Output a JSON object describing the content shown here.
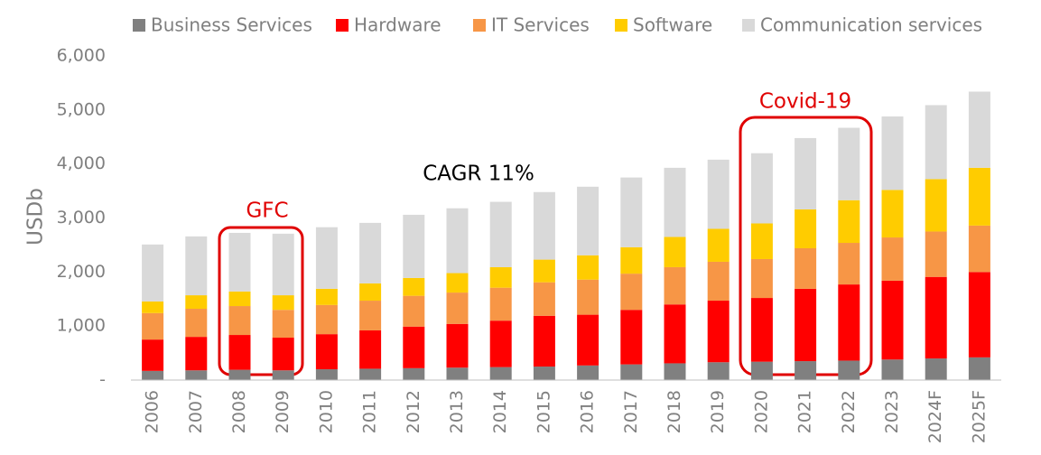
{
  "chart_data": {
    "type": "stacked-bar",
    "y_label": "USDb",
    "annotations": [
      "GFC",
      "Covid-19",
      "CAGR 11%"
    ],
    "categories": [
      "2006",
      "2007",
      "2008",
      "2009",
      "2010",
      "2011",
      "2012",
      "2013",
      "2014",
      "2015",
      "2016",
      "2017",
      "2018",
      "2019",
      "2020",
      "2021",
      "2022",
      "2023",
      "2024F",
      "2025F"
    ],
    "series": [
      {
        "name": "Business Services",
        "color": "#808080",
        "values": [
          170,
          180,
          190,
          180,
          200,
          210,
          220,
          230,
          240,
          250,
          270,
          290,
          310,
          330,
          340,
          350,
          360,
          380,
          400,
          420
        ]
      },
      {
        "name": "Hardware",
        "color": "#ff0000",
        "values": [
          580,
          620,
          645,
          605,
          650,
          710,
          770,
          810,
          860,
          940,
          940,
          1010,
          1090,
          1140,
          1180,
          1340,
          1410,
          1460,
          1510,
          1580
        ]
      },
      {
        "name": "IT Services",
        "color": "#f79646",
        "values": [
          490,
          520,
          535,
          515,
          540,
          550,
          570,
          580,
          610,
          620,
          650,
          670,
          690,
          720,
          720,
          750,
          770,
          800,
          840,
          860
        ]
      },
      {
        "name": "Software",
        "color": "#ffcc00",
        "values": [
          215,
          250,
          270,
          270,
          300,
          320,
          330,
          360,
          380,
          420,
          450,
          490,
          560,
          610,
          660,
          720,
          790,
          880,
          970,
          1070
        ]
      },
      {
        "name": "Communication services",
        "color": "#d9d9d9",
        "values": [
          1055,
          1090,
          1085,
          1140,
          1140,
          1120,
          1170,
          1200,
          1210,
          1250,
          1270,
          1290,
          1280,
          1280,
          1300,
          1320,
          1340,
          1360,
          1370,
          1410
        ]
      }
    ],
    "ylim": [
      0,
      6000
    ],
    "yticks": [
      {
        "value": 0,
        "label": "-"
      },
      {
        "value": 1000,
        "label": "1,000"
      },
      {
        "value": 2000,
        "label": "2,000"
      },
      {
        "value": 3000,
        "label": "3,000"
      },
      {
        "value": 4000,
        "label": "4,000"
      },
      {
        "value": 5000,
        "label": "5,000"
      },
      {
        "value": 6000,
        "label": "6,000"
      }
    ],
    "grid": false
  }
}
